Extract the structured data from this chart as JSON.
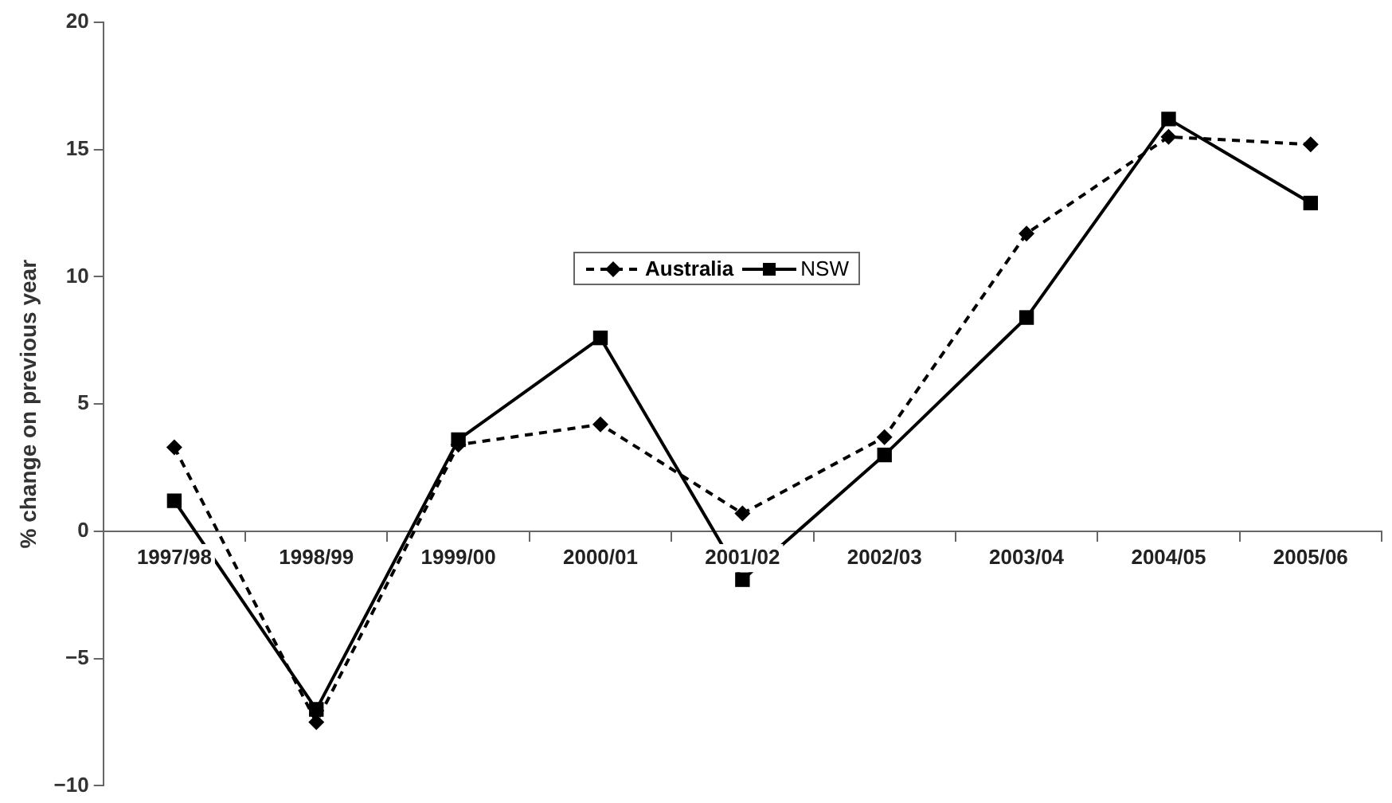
{
  "chart_data": {
    "type": "line",
    "ylabel": "% change on previous year",
    "categories": [
      "1997/98",
      "1998/99",
      "1999/00",
      "2000/01",
      "2001/02",
      "2002/03",
      "2003/04",
      "2004/05",
      "2005/06"
    ],
    "series": [
      {
        "name": "Australia",
        "color": "#000000",
        "marker": "diamond",
        "line_style": "dashed",
        "values": [
          3.3,
          -7.5,
          3.4,
          4.2,
          0.7,
          3.7,
          11.7,
          15.5,
          15.2
        ]
      },
      {
        "name": "NSW",
        "color": "#000000",
        "marker": "square",
        "line_style": "solid",
        "values": [
          1.2,
          -7.0,
          3.6,
          7.6,
          -1.9,
          3.0,
          8.4,
          16.2,
          12.9
        ]
      }
    ],
    "ylim": [
      -10,
      20
    ],
    "yticks": [
      {
        "value": -10,
        "label": "−10"
      },
      {
        "value": -5,
        "label": "−5"
      },
      0,
      5,
      10,
      15,
      20
    ],
    "grid": false,
    "legend": "top"
  }
}
